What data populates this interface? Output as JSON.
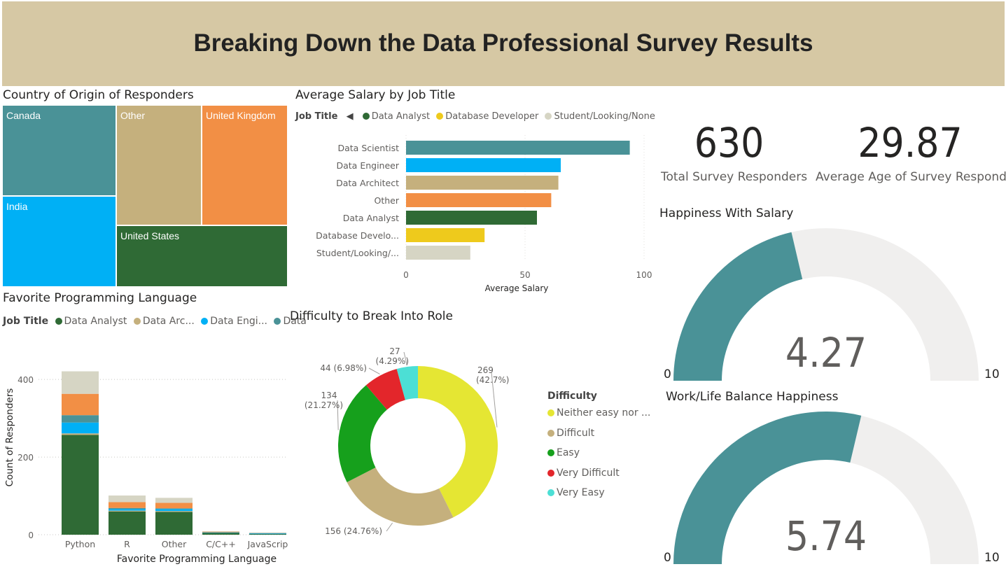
{
  "dashboard_title": "Breaking Down the Data Professional Survey Results",
  "colors": {
    "teal": "#4a9297",
    "tan": "#c5b07d",
    "orange": "#f28f45",
    "blue": "#00b0f5",
    "green": "#2f6a35",
    "yellow": "#eeca1c",
    "beige": "#d6d5c4",
    "gauge_bg": "#f0efee",
    "banner": "#d6c8a4"
  },
  "treemap": {
    "title": "Country of Origin of Responders",
    "tiles": [
      {
        "label": "Canada",
        "color": "#4a9297"
      },
      {
        "label": "India",
        "color": "#00b0f5"
      },
      {
        "label": "Other",
        "color": "#c5b07d"
      },
      {
        "label": "United Kingdom",
        "color": "#f28f45"
      },
      {
        "label": "United States",
        "color": "#2f6a35"
      }
    ]
  },
  "salary_legend": {
    "label": "Job Title",
    "items": [
      {
        "name": "Data Analyst",
        "color": "#2f6a35"
      },
      {
        "name": "Database Developer",
        "color": "#eeca1c"
      },
      {
        "name": "Student/Looking/None",
        "color": "#d6d5c4"
      }
    ]
  },
  "lang_legend": {
    "label": "Job Title",
    "items": [
      {
        "name": "Data Analyst",
        "color": "#2f6a35"
      },
      {
        "name": "Data Arc...",
        "color": "#c5b07d"
      },
      {
        "name": "Data Engi...",
        "color": "#00b0f5"
      },
      {
        "name": "Data",
        "color": "#4a9297"
      }
    ]
  },
  "kpis": [
    {
      "value": "630",
      "label": "Total Survey Responders"
    },
    {
      "value": "29.87",
      "label": "Average Age of Survey Responder"
    }
  ],
  "gauges": [
    {
      "title": "Happiness With Salary",
      "value": 4.27,
      "value_text": "4.27",
      "min_label": "0",
      "max_label": "10",
      "min": 0,
      "max": 10
    },
    {
      "title": "Work/Life Balance Happiness",
      "value": 5.74,
      "value_text": "5.74",
      "min_label": "0",
      "max_label": "10",
      "min": 0,
      "max": 10
    }
  ],
  "chart_data": [
    {
      "type": "bar",
      "orientation": "horizontal",
      "title": "Average Salary by Job Title",
      "categories": [
        "Data Scientist",
        "Data Engineer",
        "Data Architect",
        "Other",
        "Data Analyst",
        "Database Develo...",
        "Student/Looking/..."
      ],
      "values": [
        94,
        65,
        64,
        61,
        55,
        33,
        27
      ],
      "colors": [
        "#4a9297",
        "#00b0f5",
        "#c5b07d",
        "#f28f45",
        "#2f6a35",
        "#eeca1c",
        "#d6d5c4"
      ],
      "xlabel": "Average Salary",
      "xlim": [
        0,
        100
      ],
      "xticks": [
        "0",
        "50",
        "100"
      ]
    },
    {
      "type": "bar",
      "stacked": true,
      "title": "Favorite Programming Language",
      "xlabel": "Favorite Programming Language",
      "ylabel": "Count of Responders",
      "ylim": [
        0,
        440
      ],
      "yticks": [
        "0",
        "200",
        "400"
      ],
      "categories": [
        "Python",
        "R",
        "Other",
        "C/C++",
        "JavaScrip"
      ],
      "series": [
        {
          "name": "Data Analyst",
          "color": "#2f6a35",
          "values": [
            257,
            60,
            59,
            5,
            2
          ]
        },
        {
          "name": "Data Architect",
          "color": "#c5b07d",
          "values": [
            4,
            2,
            2,
            0,
            0
          ]
        },
        {
          "name": "Data Engineer",
          "color": "#00b0f5",
          "values": [
            28,
            4,
            5,
            1,
            1
          ]
        },
        {
          "name": "Data Scientist",
          "color": "#4a9297",
          "values": [
            19,
            3,
            2,
            0,
            1
          ]
        },
        {
          "name": "Other",
          "color": "#f28f45",
          "values": [
            55,
            15,
            14,
            2,
            0
          ]
        },
        {
          "name": "Student/Looking/None",
          "color": "#d6d5c4",
          "values": [
            58,
            17,
            13,
            1,
            2
          ]
        }
      ]
    },
    {
      "type": "pie",
      "donut": true,
      "title": "Difficulty to Break Into Role",
      "legend_title": "Difficulty",
      "slices": [
        {
          "name": "Neither easy nor ...",
          "value": 269,
          "label": "269",
          "pct": "(42.7%)",
          "color": "#e5e633"
        },
        {
          "name": "Difficult",
          "value": 156,
          "label": "156 (24.76%)",
          "pct": "",
          "color": "#c5b07d"
        },
        {
          "name": "Easy",
          "value": 134,
          "label": "134",
          "pct": "(21.27%)",
          "color": "#16a01c"
        },
        {
          "name": "Very Difficult",
          "value": 44,
          "label": "44 (6.98%)",
          "pct": "",
          "color": "#e3262b"
        },
        {
          "name": "Very Easy",
          "value": 27,
          "label": "27",
          "pct": "(4.29%)",
          "color": "#4cdfd5"
        }
      ]
    }
  ]
}
